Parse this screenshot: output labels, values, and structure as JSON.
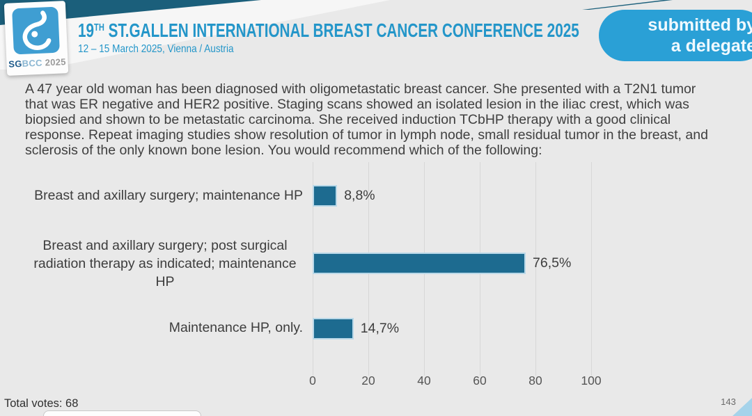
{
  "colors": {
    "background": "#e9e9e9",
    "accent_blue": "#2496c9",
    "badge_blue": "#2aa0d6",
    "dark_band": "#1b5f7b",
    "bar_fill": "#1d6b90",
    "bar_border": "#b9d8e8",
    "logo_blue": "#3f9ed2",
    "corner_triangle": "#a5d3ea"
  },
  "header": {
    "logo": {
      "icon": "sgbcc-breast-logo-icon",
      "caption_sg": "SG",
      "caption_bcc": "BCC",
      "caption_year": " 2025"
    },
    "title_prefix": "19",
    "title_sup": "TH",
    "title_rest": " ST.GALLEN INTERNATIONAL BREAST CANCER CONFERENCE 2025",
    "subtitle": "12 – 15 March 2025, Vienna / Austria",
    "badge": {
      "line1": "submitted by",
      "line2": "a delegate"
    }
  },
  "question": {
    "text": "A 47 year old woman has been diagnosed with oligometastatic breast cancer.  She presented with a T2N1 tumor\nthat was ER negative and HER2 positive.  Staging scans showed an isolated lesion in the iliac crest, which was\nbiopsied and shown to be metastatic carcinoma.  She received induction TCbHP therapy with a good clinical\nresponse.  Repeat imaging studies show resolution of tumor in lymph node, small residual tumor in the breast, and\nsclerosis of the only known bone lesion.  You would recommend which of the following:"
  },
  "chart_data": {
    "type": "bar",
    "orientation": "horizontal",
    "categories": [
      "Breast and axillary surgery; maintenance HP",
      "Breast and axillary surgery; post surgical radiation therapy as indicated; maintenance HP",
      "Maintenance HP, only."
    ],
    "category_display": [
      "Breast and axillary surgery; maintenance HP",
      "Breast and axillary surgery; post surgical\nradiation therapy as indicated; maintenance\nHP",
      "Maintenance HP, only."
    ],
    "values": [
      8.8,
      76.5,
      14.7
    ],
    "value_labels": [
      "8,8%",
      "76,5%",
      "14,7%"
    ],
    "x_ticks": [
      0,
      20,
      40,
      60,
      80,
      100
    ],
    "xlim": [
      0,
      100
    ],
    "grid": true,
    "legend": null,
    "title": ""
  },
  "footer": {
    "total_votes_label": "Total votes: 68",
    "page_number": "143"
  }
}
